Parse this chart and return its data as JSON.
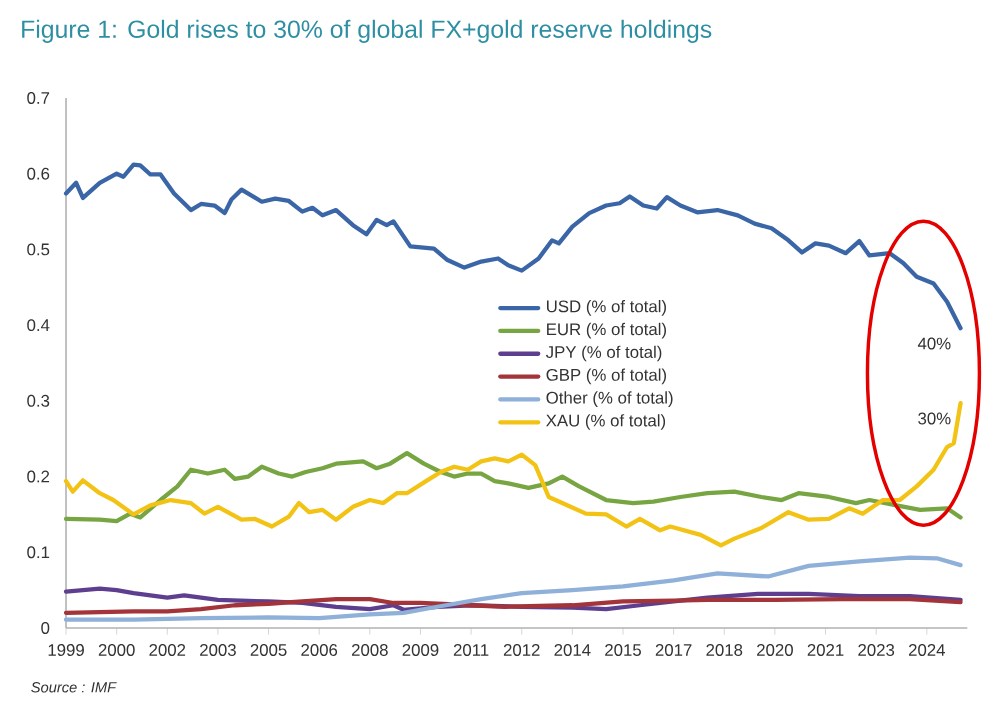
{
  "chart_data": {
    "type": "line",
    "title": "Figure 1: Gold rises to 30% of global FX+gold reserve holdings",
    "xlim": [
      1999,
      2025.7
    ],
    "ylim": [
      0,
      0.7
    ],
    "xticks": [
      1999,
      {
        "value": 2000.5,
        "label": "2000"
      },
      2002,
      {
        "value": 2003.5,
        "label": "2003"
      },
      2005,
      {
        "value": 2006.5,
        "label": "2006"
      },
      2008,
      {
        "value": 2009.5,
        "label": "2009"
      },
      2011,
      {
        "value": 2012.5,
        "label": "2012"
      },
      2014,
      {
        "value": 2015.5,
        "label": "2015"
      },
      2017,
      {
        "value": 2018.5,
        "label": "2018"
      },
      2020,
      {
        "value": 2021.5,
        "label": "2021"
      },
      2023,
      {
        "value": 2024.5,
        "label": "2024"
      }
    ],
    "yticks": [
      0,
      0.1,
      0.2,
      0.3,
      0.4,
      0.5,
      0.6,
      0.7
    ],
    "legend": "center",
    "grid": false,
    "series": [
      {
        "name": "USD (% of total)",
        "color": "#3a66a8",
        "x": [
          1999.0,
          1999.3,
          1999.5,
          2000.0,
          2000.5,
          2000.7,
          2001.0,
          2001.2,
          2001.5,
          2001.8,
          2002.2,
          2002.7,
          2003.0,
          2003.4,
          2003.7,
          2003.9,
          2004.2,
          2004.8,
          2005.2,
          2005.6,
          2006.0,
          2006.3,
          2006.6,
          2007.0,
          2007.5,
          2007.9,
          2008.2,
          2008.5,
          2008.7,
          2009.2,
          2009.9,
          2010.3,
          2010.8,
          2011.3,
          2011.8,
          2012.1,
          2012.5,
          2013.0,
          2013.4,
          2013.6,
          2014.0,
          2014.5,
          2015.0,
          2015.4,
          2015.7,
          2016.1,
          2016.5,
          2016.8,
          2017.2,
          2017.7,
          2018.3,
          2018.9,
          2019.4,
          2019.9,
          2020.4,
          2020.8,
          2021.2,
          2021.6,
          2022.1,
          2022.5,
          2022.8,
          2023.4,
          2023.8,
          2024.2,
          2024.7,
          2025.1,
          2025.5
        ],
        "values": [
          0.574,
          0.588,
          0.568,
          0.588,
          0.6,
          0.596,
          0.612,
          0.611,
          0.599,
          0.599,
          0.574,
          0.552,
          0.56,
          0.558,
          0.548,
          0.566,
          0.579,
          0.563,
          0.567,
          0.564,
          0.55,
          0.555,
          0.545,
          0.552,
          0.532,
          0.52,
          0.539,
          0.532,
          0.537,
          0.504,
          0.501,
          0.486,
          0.476,
          0.484,
          0.488,
          0.479,
          0.472,
          0.488,
          0.512,
          0.508,
          0.53,
          0.548,
          0.558,
          0.561,
          0.57,
          0.558,
          0.554,
          0.569,
          0.558,
          0.549,
          0.552,
          0.545,
          0.534,
          0.528,
          0.512,
          0.496,
          0.508,
          0.505,
          0.495,
          0.511,
          0.492,
          0.495,
          0.482,
          0.464,
          0.455,
          0.431,
          0.396
        ]
      },
      {
        "name": "EUR (% of total)",
        "color": "#77a542",
        "x": [
          1999.0,
          2000.0,
          2000.5,
          2000.9,
          2001.2,
          2001.8,
          2002.3,
          2002.7,
          2003.2,
          2003.7,
          2004.0,
          2004.4,
          2004.8,
          2005.3,
          2005.7,
          2006.1,
          2006.6,
          2007.0,
          2007.8,
          2008.2,
          2008.6,
          2009.1,
          2009.6,
          2010.1,
          2010.5,
          2010.9,
          2011.3,
          2011.7,
          2012.1,
          2012.7,
          2013.3,
          2013.7,
          2014.2,
          2015.0,
          2015.8,
          2016.4,
          2017.2,
          2018.0,
          2018.8,
          2019.6,
          2020.2,
          2020.7,
          2021.6,
          2022.4,
          2022.8,
          2023.6,
          2024.3,
          2025.1,
          2025.5
        ],
        "values": [
          0.144,
          0.143,
          0.141,
          0.151,
          0.146,
          0.169,
          0.187,
          0.209,
          0.204,
          0.209,
          0.197,
          0.2,
          0.213,
          0.204,
          0.2,
          0.206,
          0.211,
          0.217,
          0.22,
          0.211,
          0.217,
          0.231,
          0.217,
          0.206,
          0.2,
          0.204,
          0.204,
          0.194,
          0.191,
          0.185,
          0.191,
          0.2,
          0.187,
          0.169,
          0.165,
          0.167,
          0.173,
          0.178,
          0.18,
          0.173,
          0.169,
          0.178,
          0.173,
          0.165,
          0.169,
          0.162,
          0.156,
          0.158,
          0.146
        ]
      },
      {
        "name": "JPY (% of total)",
        "color": "#5e3f8f",
        "x": [
          1999,
          2000,
          2000.5,
          2001,
          2002,
          2002.5,
          2003.5,
          2005,
          2006,
          2007,
          2008,
          2008.7,
          2009,
          2010,
          2011,
          2012.5,
          2014,
          2015,
          2016,
          2017,
          2018,
          2019.5,
          2021,
          2022.5,
          2024,
          2025.5
        ],
        "values": [
          0.048,
          0.052,
          0.05,
          0.046,
          0.04,
          0.043,
          0.037,
          0.035,
          0.033,
          0.028,
          0.025,
          0.03,
          0.024,
          0.028,
          0.03,
          0.028,
          0.027,
          0.025,
          0.03,
          0.035,
          0.04,
          0.045,
          0.045,
          0.042,
          0.042,
          0.037
        ]
      },
      {
        "name": "GBP (% of total)",
        "color": "#a3343a",
        "x": [
          1999,
          2001,
          2002,
          2003,
          2004,
          2005,
          2006,
          2007,
          2008,
          2008.7,
          2009.5,
          2011,
          2012,
          2014,
          2015.5,
          2017,
          2018,
          2020,
          2022,
          2024,
          2025.5
        ],
        "values": [
          0.02,
          0.022,
          0.022,
          0.025,
          0.03,
          0.032,
          0.035,
          0.038,
          0.038,
          0.033,
          0.033,
          0.03,
          0.028,
          0.03,
          0.035,
          0.036,
          0.037,
          0.037,
          0.038,
          0.038,
          0.034
        ]
      },
      {
        "name": "Other (% of total)",
        "color": "#8fb0d8",
        "x": [
          1999,
          2001,
          2003,
          2005,
          2006.5,
          2008,
          2009,
          2010,
          2011.3,
          2012.5,
          2014,
          2015.5,
          2017,
          2018.3,
          2019.8,
          2021,
          2022.5,
          2024,
          2024.8,
          2025.5
        ],
        "values": [
          0.011,
          0.011,
          0.013,
          0.014,
          0.013,
          0.018,
          0.02,
          0.028,
          0.038,
          0.046,
          0.05,
          0.055,
          0.063,
          0.072,
          0.068,
          0.082,
          0.088,
          0.093,
          0.092,
          0.083
        ]
      },
      {
        "name": "XAU (% of total)",
        "color": "#f2c314",
        "x": [
          1999.0,
          1999.2,
          1999.5,
          2000.0,
          2000.4,
          2001.0,
          2001.5,
          2002.1,
          2002.7,
          2003.1,
          2003.5,
          2004.2,
          2004.6,
          2005.1,
          2005.6,
          2005.9,
          2006.2,
          2006.6,
          2007.0,
          2007.5,
          2008.0,
          2008.4,
          2008.8,
          2009.1,
          2009.7,
          2010.1,
          2010.5,
          2010.9,
          2011.3,
          2011.7,
          2012.1,
          2012.5,
          2012.9,
          2013.3,
          2013.7,
          2014.4,
          2015.0,
          2015.6,
          2016.0,
          2016.6,
          2016.9,
          2017.8,
          2018.4,
          2018.8,
          2019.6,
          2020.4,
          2021.0,
          2021.6,
          2022.2,
          2022.6,
          2023.2,
          2023.7,
          2024.2,
          2024.7,
          2025.1,
          2025.3,
          2025.5
        ],
        "values": [
          0.194,
          0.18,
          0.195,
          0.178,
          0.169,
          0.15,
          0.162,
          0.169,
          0.165,
          0.151,
          0.16,
          0.143,
          0.144,
          0.134,
          0.147,
          0.165,
          0.153,
          0.156,
          0.143,
          0.16,
          0.169,
          0.165,
          0.178,
          0.178,
          0.195,
          0.206,
          0.213,
          0.209,
          0.22,
          0.224,
          0.22,
          0.229,
          0.215,
          0.173,
          0.165,
          0.151,
          0.15,
          0.134,
          0.144,
          0.129,
          0.134,
          0.123,
          0.109,
          0.118,
          0.132,
          0.153,
          0.143,
          0.144,
          0.158,
          0.151,
          0.169,
          0.169,
          0.187,
          0.209,
          0.239,
          0.244,
          0.297
        ]
      }
    ],
    "annotations": [
      {
        "text": "40%",
        "x": 2025.5,
        "y": 0.396
      },
      {
        "text": "30%",
        "x": 2025.5,
        "y": 0.297
      },
      "Source : IMF"
    ]
  }
}
